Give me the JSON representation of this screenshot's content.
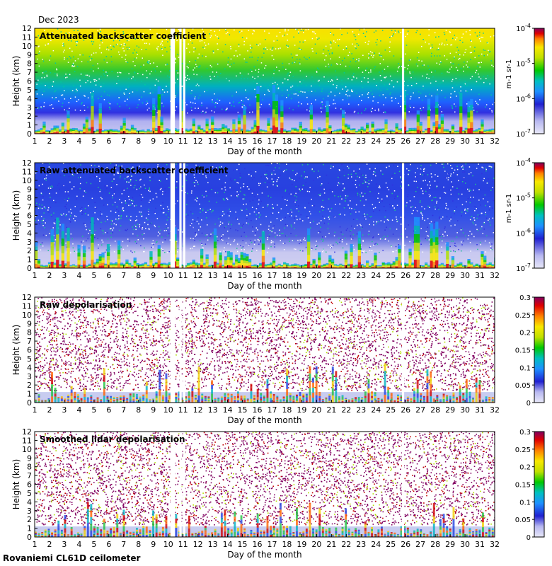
{
  "header": {
    "date_label": "Dec 2023"
  },
  "footer": {
    "site_label": "Rovaniemi CL61D ceilometer"
  },
  "chart_data": [
    {
      "type": "heatmap",
      "title": "Attenuated backscatter coefficient",
      "xlabel": "Day of the month",
      "ylabel": "Height (km)",
      "xlim": [
        1,
        32
      ],
      "ylim": [
        0,
        12
      ],
      "xticks": [
        "1",
        "2",
        "3",
        "4",
        "5",
        "6",
        "7",
        "8",
        "9",
        "10",
        "11",
        "12",
        "13",
        "14",
        "15",
        "16",
        "17",
        "18",
        "19",
        "20",
        "21",
        "22",
        "23",
        "24",
        "25",
        "26",
        "27",
        "28",
        "29",
        "30",
        "31",
        "32"
      ],
      "yticks": [
        "0",
        "1",
        "2",
        "3",
        "4",
        "5",
        "6",
        "7",
        "8",
        "9",
        "10",
        "11",
        "12"
      ],
      "colorbar": {
        "scale": "log",
        "range": [
          1e-07,
          0.0001
        ],
        "tick_labels": [
          "10-7",
          "10-6",
          "10-5",
          "10-4"
        ],
        "unit_label": "m-1 sr-1"
      },
      "data_gaps_days": [
        [
          10.15,
          10.45
        ],
        [
          10.75,
          10.9
        ],
        [
          11.0,
          11.15
        ],
        [
          25.75,
          25.9
        ]
      ]
    },
    {
      "type": "heatmap",
      "title": "Raw attenuated backscatter coefficient",
      "xlabel": "Day of the month",
      "ylabel": "Height (km)",
      "xlim": [
        1,
        32
      ],
      "ylim": [
        0,
        12
      ],
      "xticks": [
        "1",
        "2",
        "3",
        "4",
        "5",
        "6",
        "7",
        "8",
        "9",
        "10",
        "11",
        "12",
        "13",
        "14",
        "15",
        "16",
        "17",
        "18",
        "19",
        "20",
        "21",
        "22",
        "23",
        "24",
        "25",
        "26",
        "27",
        "28",
        "29",
        "30",
        "31",
        "32"
      ],
      "yticks": [
        "0",
        "1",
        "2",
        "3",
        "4",
        "5",
        "6",
        "7",
        "8",
        "9",
        "10",
        "11",
        "12"
      ],
      "colorbar": {
        "scale": "log",
        "range": [
          1e-07,
          0.0001
        ],
        "tick_labels": [
          "10-7",
          "10-6",
          "10-5",
          "10-4"
        ],
        "unit_label": "m-1 sr-1"
      },
      "data_gaps_days": [
        [
          10.15,
          10.45
        ],
        [
          10.75,
          10.9
        ],
        [
          11.0,
          11.15
        ],
        [
          25.75,
          25.9
        ]
      ]
    },
    {
      "type": "heatmap",
      "title": "Raw depolarisation",
      "xlabel": "Day of the month",
      "ylabel": "Height (km)",
      "xlim": [
        1,
        32
      ],
      "ylim": [
        0,
        12
      ],
      "xticks": [
        "1",
        "2",
        "3",
        "4",
        "5",
        "6",
        "7",
        "8",
        "9",
        "10",
        "11",
        "12",
        "13",
        "14",
        "15",
        "16",
        "17",
        "18",
        "19",
        "20",
        "21",
        "22",
        "23",
        "24",
        "25",
        "26",
        "27",
        "28",
        "29",
        "30",
        "31",
        "32"
      ],
      "yticks": [
        "0",
        "1",
        "2",
        "3",
        "4",
        "5",
        "6",
        "7",
        "8",
        "9",
        "10",
        "11",
        "12"
      ],
      "colorbar": {
        "scale": "linear",
        "range": [
          0,
          0.3
        ],
        "tick_labels": [
          "0",
          "0.05",
          "0.1",
          "0.15",
          "0.2",
          "0.25",
          "0.3"
        ],
        "unit_label": ""
      },
      "data_gaps_days": [
        [
          10.15,
          10.45
        ],
        [
          10.75,
          10.9
        ],
        [
          11.0,
          11.15
        ],
        [
          25.75,
          25.9
        ]
      ]
    },
    {
      "type": "heatmap",
      "title": "Smoothed lidar depolarisation",
      "xlabel": "Day of the month",
      "ylabel": "Height (km)",
      "xlim": [
        1,
        32
      ],
      "ylim": [
        0,
        12
      ],
      "xticks": [
        "1",
        "2",
        "3",
        "4",
        "5",
        "6",
        "7",
        "8",
        "9",
        "10",
        "11",
        "12",
        "13",
        "14",
        "15",
        "16",
        "17",
        "18",
        "19",
        "20",
        "21",
        "22",
        "23",
        "24",
        "25",
        "26",
        "27",
        "28",
        "29",
        "30",
        "31",
        "32"
      ],
      "yticks": [
        "0",
        "1",
        "2",
        "3",
        "4",
        "5",
        "6",
        "7",
        "8",
        "9",
        "10",
        "11",
        "12"
      ],
      "colorbar": {
        "scale": "linear",
        "range": [
          0,
          0.3
        ],
        "tick_labels": [
          "0",
          "0.05",
          "0.1",
          "0.15",
          "0.2",
          "0.25",
          "0.3"
        ],
        "unit_label": ""
      },
      "data_gaps_days": [
        [
          10.15,
          10.45
        ],
        [
          10.75,
          10.9
        ],
        [
          11.0,
          11.15
        ],
        [
          25.75,
          25.9
        ]
      ]
    }
  ]
}
